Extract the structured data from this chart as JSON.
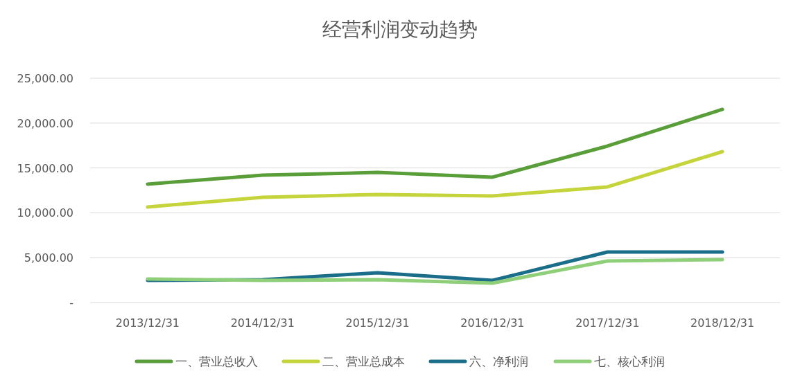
{
  "chart_data": {
    "type": "line",
    "title": "经营利润变动趋势",
    "categories": [
      "2013/12/31",
      "2014/12/31",
      "2015/12/31",
      "2016/12/31",
      "2017/12/31",
      "2018/12/31"
    ],
    "series": [
      {
        "name": "一、营业总收入",
        "color": "#5a9e3a",
        "values": [
          13200,
          14200,
          14500,
          13970,
          17440,
          21530
        ]
      },
      {
        "name": "二、营业总成本",
        "color": "#c4d43a",
        "values": [
          10650,
          11730,
          12040,
          11880,
          12890,
          16820
        ]
      },
      {
        "name": "六、净利润",
        "color": "#1a6e8a",
        "values": [
          2470,
          2550,
          3320,
          2470,
          5630,
          5630
        ]
      },
      {
        "name": "七、核心利润",
        "color": "#8fcf7a",
        "values": [
          2620,
          2470,
          2550,
          2160,
          4630,
          4780
        ]
      }
    ],
    "ylim": [
      0,
      25000
    ],
    "yticks": [
      {
        "value": 0,
        "label": "-"
      },
      {
        "value": 5000,
        "label": "5,000.00"
      },
      {
        "value": 10000,
        "label": "10,000.00"
      },
      {
        "value": 15000,
        "label": "15,000.00"
      },
      {
        "value": 20000,
        "label": "20,000.00"
      },
      {
        "value": 25000,
        "label": "25,000.00"
      }
    ],
    "grid": "y",
    "legend": "bottom"
  }
}
